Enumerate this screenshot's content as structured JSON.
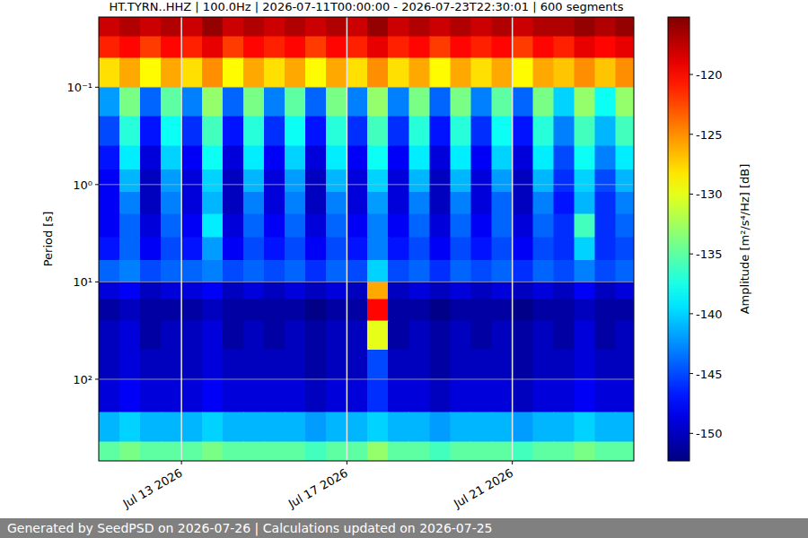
{
  "chart_data": {
    "type": "heatmap",
    "title": "HT.TYRN..HHZ | 100.0Hz | 2026-07-11T00:00:00 - 2026-07-23T22:30:01 | 600 segments",
    "y_label": "Period [s]",
    "footer": "Generated by SeedPSD on 2026-07-26 | Calculations updated on 2026-07-25",
    "log": "y",
    "grid": true,
    "xlim": [
      "2026-07-11T00:00:00",
      "2026-07-23T22:30:01"
    ],
    "ylim": [
      0.019,
      690
    ],
    "xticks": [
      {
        "value": "2026-07-13",
        "label": "Jul 13 2026"
      },
      {
        "value": "2026-07-17",
        "label": "Jul 17 2026"
      },
      {
        "value": "2026-07-21",
        "label": "Jul 21 2026"
      }
    ],
    "yticks": [
      {
        "value": 0.1,
        "label": "10⁻¹"
      },
      {
        "value": 1,
        "label": "10⁰"
      },
      {
        "value": 10,
        "label": "10¹"
      },
      {
        "value": 100,
        "label": "10²"
      }
    ],
    "x": [
      "2026-07-11T00:00:00",
      "2026-07-11T12:00:00",
      "2026-07-12T00:00:00",
      "2026-07-12T12:00:00",
      "2026-07-13T00:00:00",
      "2026-07-13T12:00:00",
      "2026-07-14T00:00:00",
      "2026-07-14T12:00:00",
      "2026-07-15T00:00:00",
      "2026-07-15T12:00:00",
      "2026-07-16T00:00:00",
      "2026-07-16T12:00:00",
      "2026-07-17T00:00:00",
      "2026-07-17T12:00:00",
      "2026-07-18T00:00:00",
      "2026-07-18T12:00:00",
      "2026-07-19T00:00:00",
      "2026-07-19T12:00:00",
      "2026-07-20T00:00:00",
      "2026-07-20T12:00:00",
      "2026-07-21T00:00:00",
      "2026-07-21T12:00:00",
      "2026-07-22T00:00:00",
      "2026-07-22T12:00:00",
      "2026-07-23T00:00:00",
      "2026-07-23T12:00:00",
      "2026-07-23T22:30:01"
    ],
    "y": [
      0.019,
      0.03,
      0.05,
      0.1,
      0.2,
      0.4,
      0.7,
      1.2,
      2,
      3.5,
      6,
      10,
      15,
      25,
      50,
      100,
      218,
      441,
      690
    ],
    "values": [
      [
        -118,
        -117,
        -118,
        -117,
        -118,
        -116,
        -118,
        -117,
        -118,
        -117,
        -118,
        -117,
        -118,
        -116,
        -118,
        -117,
        -118,
        -117,
        -118,
        -117,
        -118,
        -117,
        -117,
        -116,
        -117,
        -116
      ],
      [
        -121,
        -120,
        -122,
        -120,
        -121,
        -119,
        -122,
        -120,
        -121,
        -120,
        -122,
        -120,
        -121,
        -119,
        -121,
        -120,
        -122,
        -120,
        -121,
        -120,
        -122,
        -120,
        -121,
        -119,
        -120,
        -119
      ],
      [
        -128,
        -126,
        -129,
        -126,
        -128,
        -125,
        -129,
        -126,
        -128,
        -126,
        -129,
        -126,
        -128,
        -125,
        -128,
        -126,
        -129,
        -126,
        -128,
        -126,
        -129,
        -126,
        -127,
        -125,
        -127,
        -125
      ],
      [
        -142,
        -134,
        -144,
        -135,
        -143,
        -133,
        -144,
        -134,
        -143,
        -135,
        -144,
        -134,
        -143,
        -133,
        -143,
        -134,
        -144,
        -134,
        -143,
        -135,
        -144,
        -134,
        -140,
        -133,
        -138,
        -133
      ],
      [
        -145,
        -137,
        -147,
        -138,
        -146,
        -136,
        -147,
        -137,
        -146,
        -138,
        -147,
        -137,
        -146,
        -136,
        -146,
        -137,
        -147,
        -137,
        -146,
        -138,
        -147,
        -137,
        -143,
        -136,
        -141,
        -136
      ],
      [
        -147,
        -139,
        -149,
        -140,
        -148,
        -138,
        -149,
        -139,
        -148,
        -140,
        -149,
        -139,
        -148,
        -138,
        -148,
        -139,
        -149,
        -139,
        -148,
        -140,
        -149,
        -139,
        -145,
        -138,
        -143,
        -139
      ],
      [
        -148,
        -141,
        -150,
        -142,
        -149,
        -140,
        -150,
        -141,
        -149,
        -142,
        -150,
        -141,
        -149,
        -140,
        -149,
        -141,
        -150,
        -141,
        -149,
        -142,
        -150,
        -141,
        -146,
        -140,
        -145,
        -141
      ],
      [
        -148,
        -143,
        -150,
        -143,
        -149,
        -141,
        -150,
        -143,
        -149,
        -143,
        -150,
        -143,
        -149,
        -142,
        -149,
        -143,
        -150,
        -143,
        -149,
        -144,
        -150,
        -143,
        -147,
        -141,
        -146,
        -143
      ],
      [
        -148,
        -144,
        -149,
        -144,
        -148,
        -139,
        -149,
        -144,
        -148,
        -144,
        -149,
        -144,
        -148,
        -143,
        -148,
        -144,
        -149,
        -144,
        -148,
        -144,
        -149,
        -144,
        -146,
        -136,
        -146,
        -144
      ],
      [
        -147,
        -144,
        -148,
        -145,
        -147,
        -142,
        -148,
        -145,
        -147,
        -145,
        -148,
        -145,
        -147,
        -143,
        -147,
        -145,
        -148,
        -145,
        -147,
        -145,
        -148,
        -145,
        -146,
        -140,
        -146,
        -145
      ],
      [
        -144,
        -143,
        -145,
        -144,
        -144,
        -143,
        -145,
        -144,
        -145,
        -144,
        -146,
        -144,
        -145,
        -140,
        -145,
        -144,
        -146,
        -144,
        -145,
        -144,
        -146,
        -144,
        -145,
        -143,
        -145,
        -144
      ],
      [
        -149,
        -148,
        -150,
        -149,
        -149,
        -148,
        -150,
        -149,
        -150,
        -149,
        -150,
        -149,
        -150,
        -126,
        -150,
        -149,
        -150,
        -149,
        -150,
        -149,
        -150,
        -149,
        -150,
        -148,
        -150,
        -149
      ],
      [
        -151,
        -150,
        -151,
        -151,
        -151,
        -150,
        -151,
        -151,
        -151,
        -151,
        -152,
        -151,
        -151,
        -120,
        -151,
        -151,
        -152,
        -151,
        -151,
        -151,
        -152,
        -151,
        -151,
        -150,
        -151,
        -151
      ],
      [
        -150,
        -149,
        -151,
        -150,
        -150,
        -149,
        -151,
        -150,
        -151,
        -150,
        -151,
        -150,
        -150,
        -130,
        -151,
        -150,
        -151,
        -150,
        -151,
        -150,
        -151,
        -150,
        -151,
        -149,
        -151,
        -150
      ],
      [
        -150,
        -149,
        -150,
        -150,
        -150,
        -149,
        -150,
        -150,
        -150,
        -150,
        -151,
        -150,
        -150,
        -145,
        -150,
        -150,
        -151,
        -150,
        -150,
        -150,
        -151,
        -150,
        -150,
        -149,
        -150,
        -150
      ],
      [
        -149,
        -148,
        -149,
        -149,
        -149,
        -148,
        -149,
        -149,
        -149,
        -149,
        -150,
        -149,
        -149,
        -146,
        -149,
        -149,
        -150,
        -149,
        -149,
        -149,
        -150,
        -149,
        -149,
        -148,
        -149,
        -149
      ],
      [
        -141,
        -140,
        -141,
        -141,
        -141,
        -140,
        -141,
        -141,
        -141,
        -141,
        -142,
        -141,
        -141,
        -140,
        -141,
        -141,
        -142,
        -141,
        -141,
        -141,
        -142,
        -141,
        -141,
        -140,
        -141,
        -141
      ],
      [
        -135,
        -134,
        -135,
        -135,
        -135,
        -134,
        -135,
        -135,
        -135,
        -135,
        -136,
        -135,
        -135,
        -133,
        -135,
        -135,
        -136,
        -135,
        -135,
        -135,
        -136,
        -135,
        -135,
        -134,
        -135,
        -135
      ]
    ],
    "colorbar": {
      "label": "Amplitude [m²/s⁴/Hz] [dB]",
      "range": [
        -152.3,
        -115.2
      ],
      "ticks": [
        -150,
        -145,
        -140,
        -135,
        -130,
        -125,
        -120
      ]
    }
  }
}
